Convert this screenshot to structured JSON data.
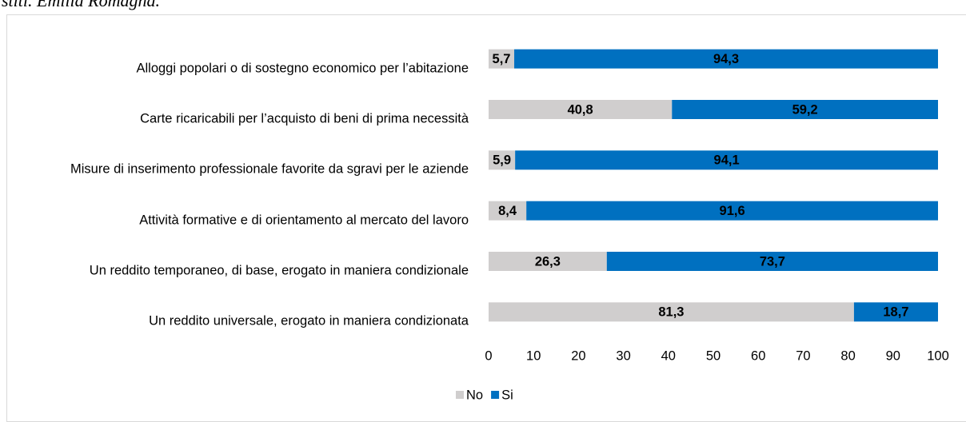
{
  "caption": "stiti. Emilia Romagna.",
  "chart_data": {
    "type": "stacked-barh",
    "categories": [
      "Alloggi popolari o di sostegno economico per l’abitazione",
      "Carte ricaricabili per l’acquisto di beni di prima necessità",
      "Misure di inserimento professionale favorite da sgravi per le aziende",
      "Attività formative e di orientamento al mercato del lavoro",
      "Un reddito temporaneo, di base, erogato in maniera condizionale",
      "Un reddito universale, erogato in maniera condizionata"
    ],
    "series": [
      {
        "name": "No",
        "color": "#d0cece",
        "values": [
          5.7,
          40.8,
          5.9,
          8.4,
          26.3,
          81.3
        ],
        "value_labels": [
          "5,7",
          "40,8",
          "5,9",
          "8,4",
          "26,3",
          "81,3"
        ]
      },
      {
        "name": "Si",
        "color": "#0070c0",
        "values": [
          94.3,
          59.2,
          94.1,
          91.6,
          73.7,
          18.7
        ],
        "value_labels": [
          "94,3",
          "59,2",
          "94,1",
          "91,6",
          "73,7",
          "18,7"
        ]
      }
    ],
    "xlim": [
      0,
      100
    ],
    "xticks": [
      0,
      10,
      20,
      30,
      40,
      50,
      60,
      70,
      80,
      90,
      100
    ],
    "grid": false,
    "legend": "bottom"
  }
}
